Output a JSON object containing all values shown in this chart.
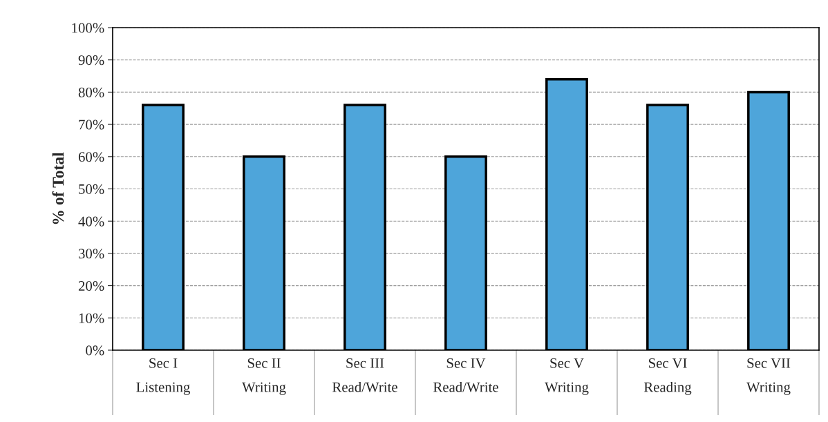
{
  "chart_data": {
    "type": "bar",
    "ylabel": "% of Total",
    "categories": [
      "Sec I\nListening",
      "Sec II\nWriting",
      "Sec III\nRead/Write",
      "Sec IV\nRead/Write",
      "Sec V\nWriting",
      "Sec VI\nReading",
      "Sec VII\nWriting"
    ],
    "values": [
      76,
      60,
      76,
      60,
      84,
      76,
      80
    ],
    "color": "#4ea5da",
    "ylim": [
      0,
      100
    ],
    "yticks": [
      {
        "value": 0,
        "label": "0%"
      },
      {
        "value": 10,
        "label": "10%"
      },
      {
        "value": 20,
        "label": "20%"
      },
      {
        "value": 30,
        "label": "30%"
      },
      {
        "value": 40,
        "label": "40%"
      },
      {
        "value": 50,
        "label": "50%"
      },
      {
        "value": 60,
        "label": "60%"
      },
      {
        "value": 70,
        "label": "70%"
      },
      {
        "value": 80,
        "label": "80%"
      },
      {
        "value": 90,
        "label": "90%"
      },
      {
        "value": 100,
        "label": "100%"
      }
    ],
    "grid": "y"
  }
}
